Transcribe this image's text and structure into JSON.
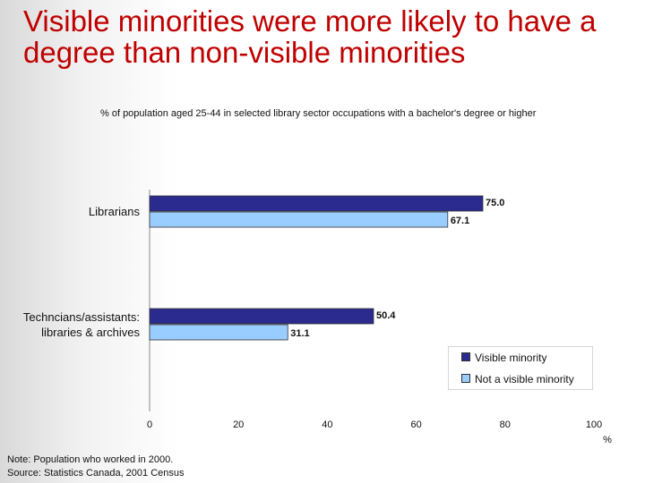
{
  "title": "Visible minorities were more likely to have a degree than non-visible minorities",
  "subtitle": "% of population aged 25-44 in selected library sector occupations with a bachelor's degree or higher",
  "note_line1": "Note:  Population who worked in 2000.",
  "note_line2": "Source:  Statistics Canada, 2001 Census",
  "colors": {
    "title": "#c00000",
    "visible": "#2b2b8f",
    "not_visible": "#99ccff"
  },
  "chart_data": {
    "type": "bar",
    "orientation": "horizontal",
    "categories": [
      "Librarians",
      "Techncians/assistants:\nlibraries & archives"
    ],
    "series": [
      {
        "name": "Visible minority",
        "values": [
          75.0,
          50.4
        ]
      },
      {
        "name": "Not a visible minority",
        "values": [
          67.1,
          31.1
        ]
      }
    ],
    "xlim": [
      0,
      100
    ],
    "xticks": [
      0,
      20,
      40,
      60,
      80,
      100
    ],
    "xlabel": "%",
    "legend_position": "bottom-right",
    "grid": false
  }
}
